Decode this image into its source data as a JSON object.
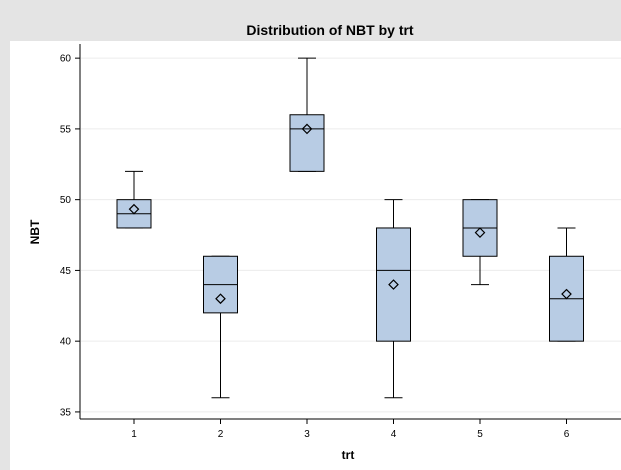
{
  "chart_data": {
    "type": "box",
    "title": "Distribution of  NBT  by  trt",
    "xlabel": "trt",
    "ylabel": "NBT",
    "categories": [
      "1",
      "2",
      "3",
      "4",
      "5",
      "6"
    ],
    "ylim": [
      34.5,
      61
    ],
    "yticks": [
      "35",
      "40",
      "45",
      "50",
      "55",
      "60"
    ],
    "grid": "horizontal",
    "boxes": [
      {
        "category": "1",
        "min": 48,
        "q1": 48,
        "median": 49,
        "q3": 50,
        "max": 52,
        "mean": 49.33
      },
      {
        "category": "2",
        "min": 36,
        "q1": 42,
        "median": 44,
        "q3": 46,
        "max": 46,
        "mean": 43
      },
      {
        "category": "3",
        "min": 52,
        "q1": 52,
        "median": 55,
        "q3": 56,
        "max": 60,
        "mean": 55
      },
      {
        "category": "4",
        "min": 36,
        "q1": 40,
        "median": 45,
        "q3": 48,
        "max": 50,
        "mean": 44
      },
      {
        "category": "5",
        "min": 44,
        "q1": 46,
        "median": 48,
        "q3": 50,
        "max": 50,
        "mean": 47.67
      },
      {
        "category": "6",
        "min": 40,
        "q1": 40,
        "median": 43,
        "q3": 46,
        "max": 48,
        "mean": 43.33
      }
    ],
    "colors": {
      "box_fill": "#b8cce4",
      "outline": "#000000",
      "frame_bg": "#e4e4e4",
      "plot_bg": "#ffffff",
      "grid": "#ececec"
    }
  }
}
